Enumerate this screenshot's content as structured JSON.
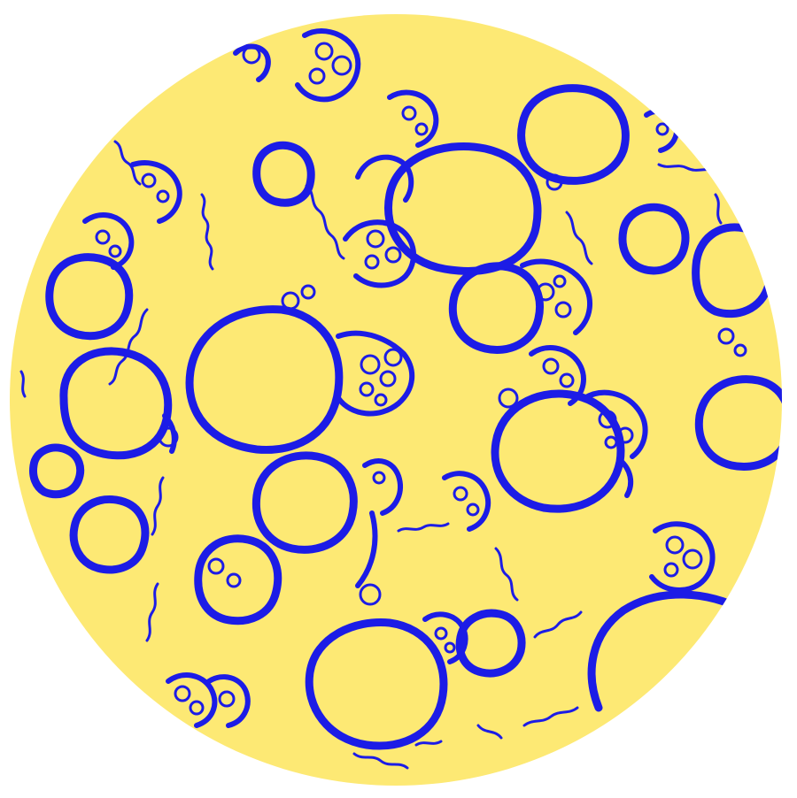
{
  "image": {
    "subject": "micrograph-illustration",
    "shape": "circle",
    "colors": {
      "page_background": "#ffffff",
      "field": "#fde974",
      "network": "#1c1ce6"
    }
  }
}
